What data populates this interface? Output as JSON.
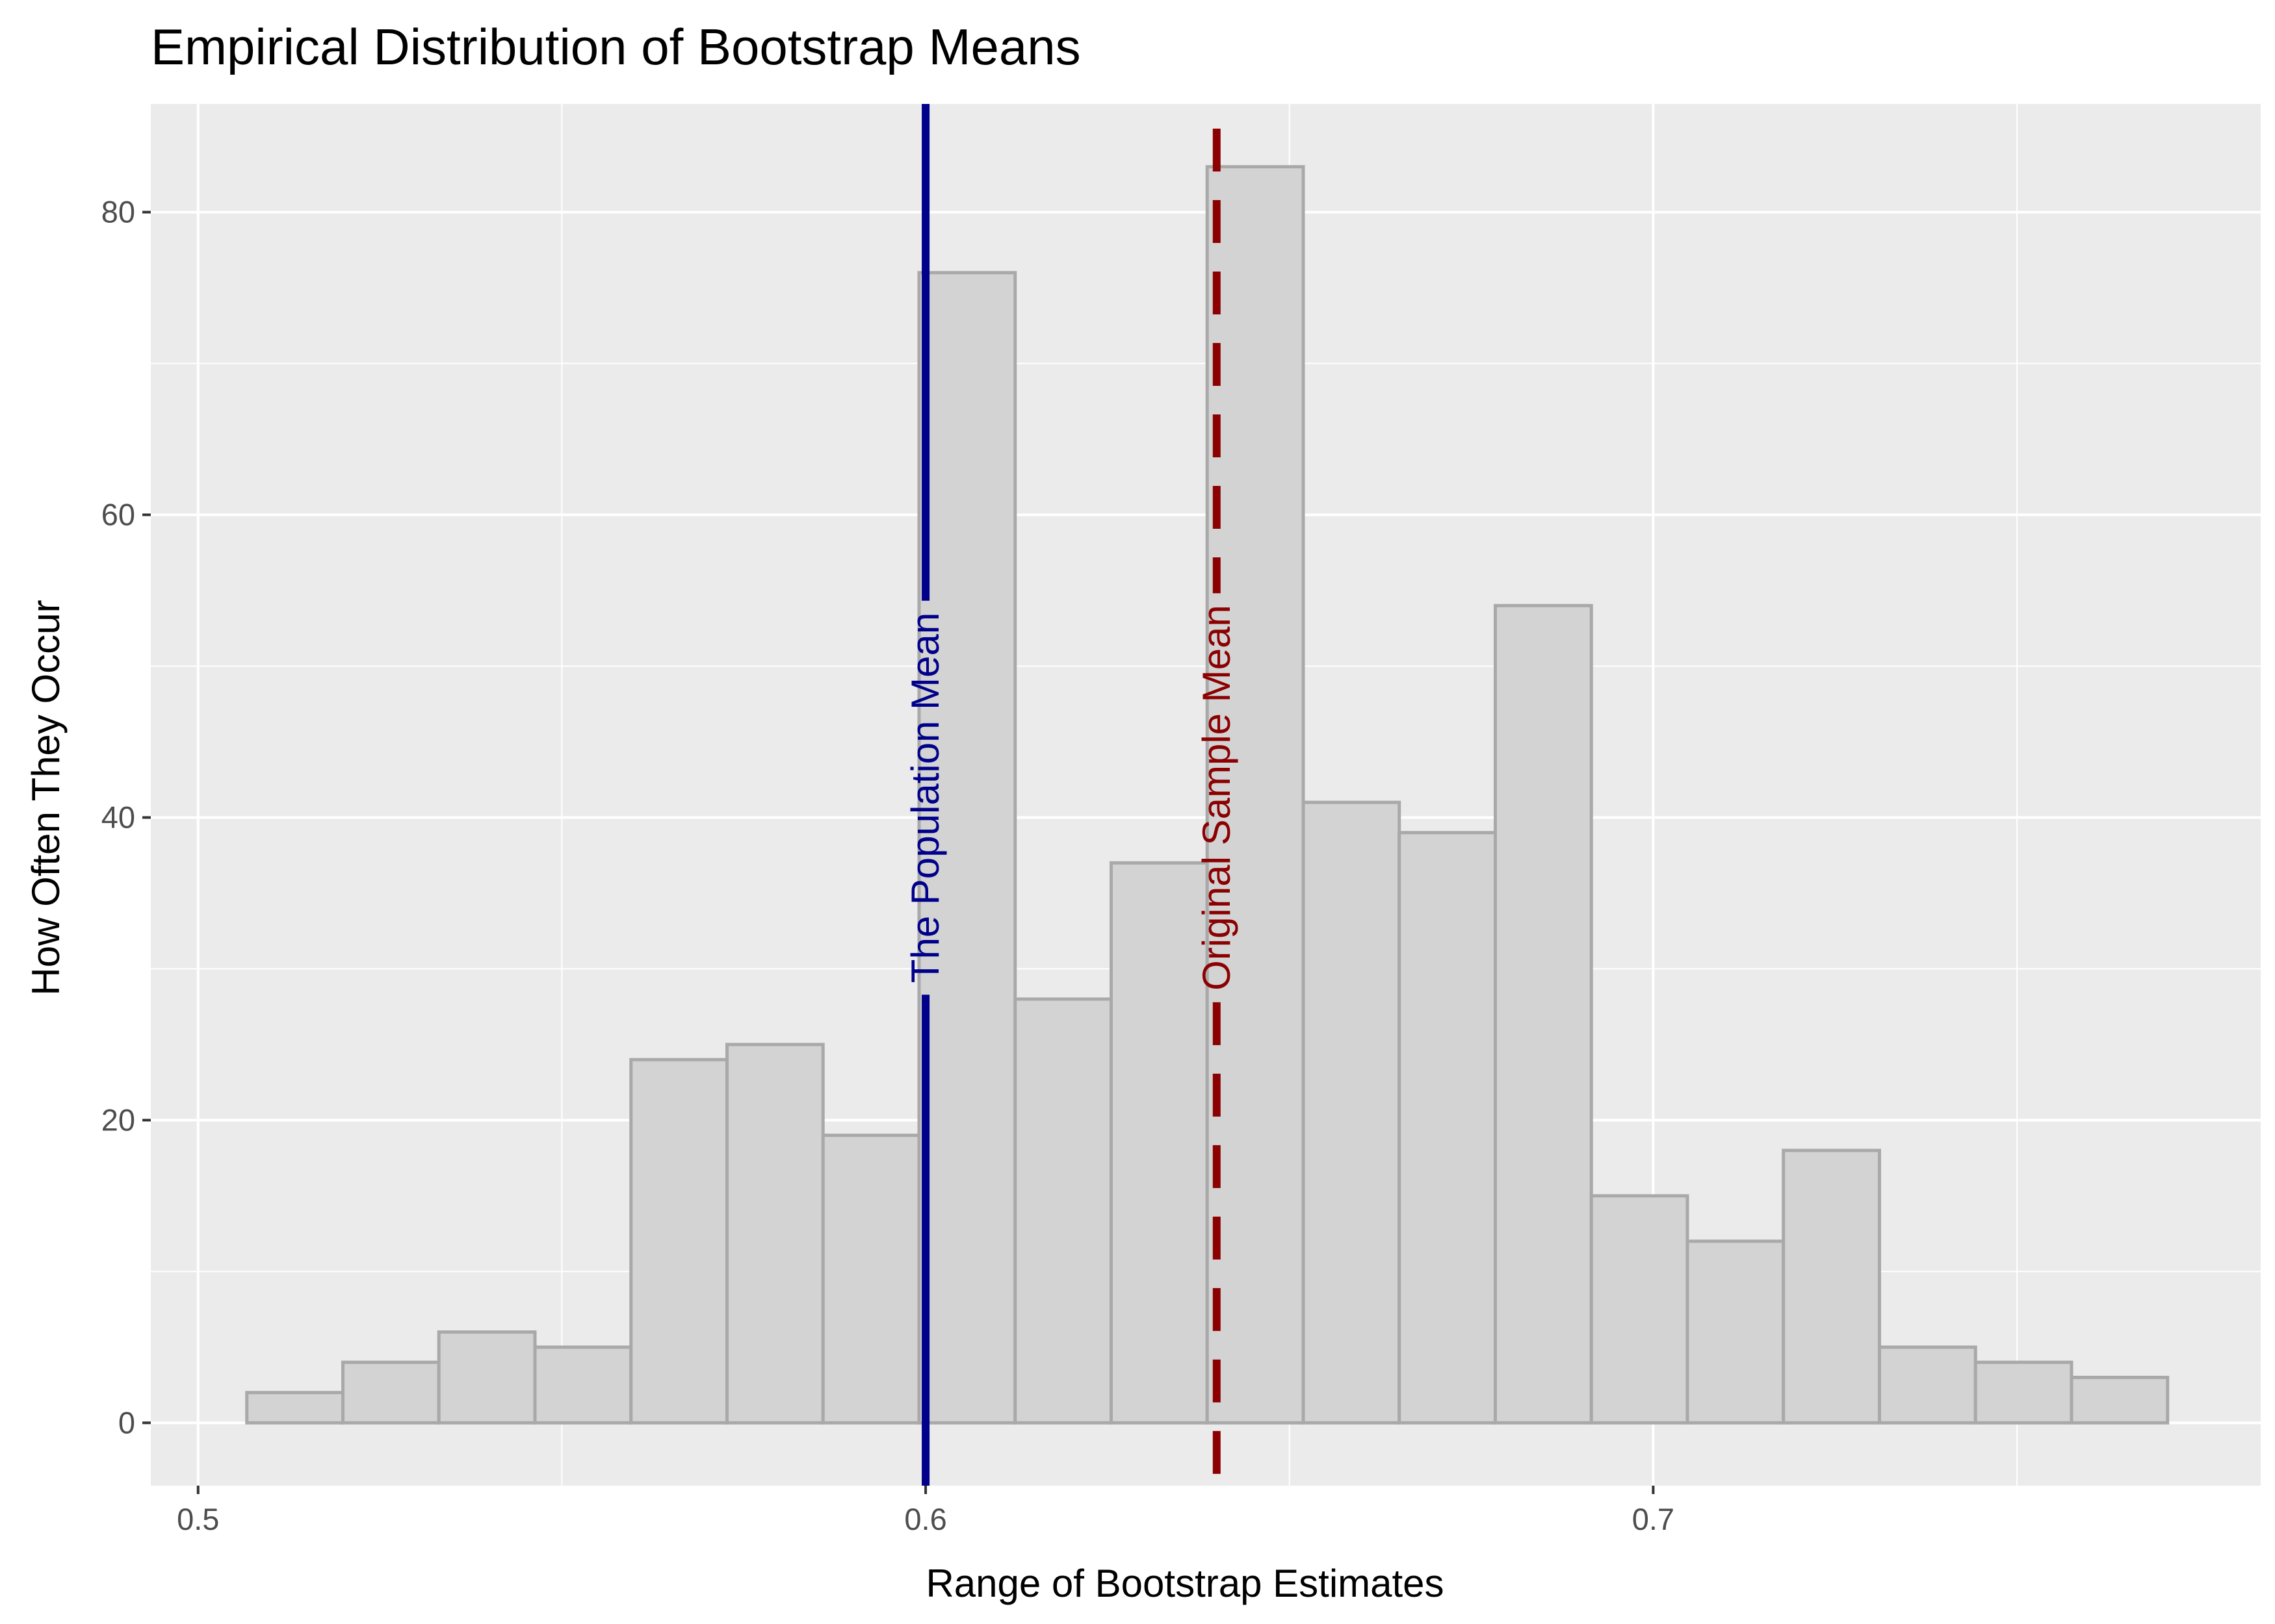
{
  "chart_data": {
    "type": "bar",
    "title": "Empirical Distribution of Bootstrap Means",
    "xlabel": "Range of Bootstrap Estimates",
    "ylabel": "How Often They Occur",
    "xlim": [
      0.4935,
      0.7835
    ],
    "ylim": [
      -4.15,
      87.15
    ],
    "x_ticks": [
      {
        "value": 0.5,
        "label": "0.5"
      },
      {
        "value": 0.6,
        "label": "0.6"
      },
      {
        "value": 0.7,
        "label": "0.7"
      }
    ],
    "y_ticks": [
      {
        "value": 0,
        "label": "0"
      },
      {
        "value": 20,
        "label": "20"
      },
      {
        "value": 40,
        "label": "40"
      },
      {
        "value": 60,
        "label": "60"
      },
      {
        "value": 80,
        "label": "80"
      }
    ],
    "x_minor_ticks": [
      0.55,
      0.65,
      0.75
    ],
    "y_minor_ticks": [
      10,
      30,
      50,
      70
    ],
    "grid": true,
    "bins": [
      {
        "start": 0.5067,
        "end": 0.5199,
        "count": 2
      },
      {
        "start": 0.5199,
        "end": 0.5331,
        "count": 4
      },
      {
        "start": 0.5331,
        "end": 0.5463,
        "count": 6
      },
      {
        "start": 0.5463,
        "end": 0.5595,
        "count": 5
      },
      {
        "start": 0.5595,
        "end": 0.5727,
        "count": 24
      },
      {
        "start": 0.5727,
        "end": 0.5859,
        "count": 25
      },
      {
        "start": 0.5859,
        "end": 0.5991,
        "count": 19
      },
      {
        "start": 0.5991,
        "end": 0.6123,
        "count": 76
      },
      {
        "start": 0.6123,
        "end": 0.6255,
        "count": 28
      },
      {
        "start": 0.6255,
        "end": 0.6387,
        "count": 37
      },
      {
        "start": 0.6387,
        "end": 0.6519,
        "count": 83
      },
      {
        "start": 0.6519,
        "end": 0.6651,
        "count": 41
      },
      {
        "start": 0.6651,
        "end": 0.6783,
        "count": 39
      },
      {
        "start": 0.6783,
        "end": 0.6915,
        "count": 54
      },
      {
        "start": 0.6915,
        "end": 0.7047,
        "count": 15
      },
      {
        "start": 0.7047,
        "end": 0.7179,
        "count": 12
      },
      {
        "start": 0.7179,
        "end": 0.7311,
        "count": 18
      },
      {
        "start": 0.7311,
        "end": 0.7443,
        "count": 5
      },
      {
        "start": 0.7443,
        "end": 0.7575,
        "count": 4
      },
      {
        "start": 0.7575,
        "end": 0.7707,
        "count": 3
      }
    ],
    "reference_lines": [
      {
        "x": 0.6,
        "label": "The Population Mean",
        "color": "#00008b",
        "style": "solid"
      },
      {
        "x": 0.64,
        "label": "Original Sample Mean",
        "color": "#8b0000",
        "style": "dashed"
      }
    ],
    "colors": {
      "panel_background": "#ebebeb",
      "grid": "#ffffff",
      "bar_fill": "#d3d3d3",
      "bar_outline": "#a9a9a9"
    }
  }
}
